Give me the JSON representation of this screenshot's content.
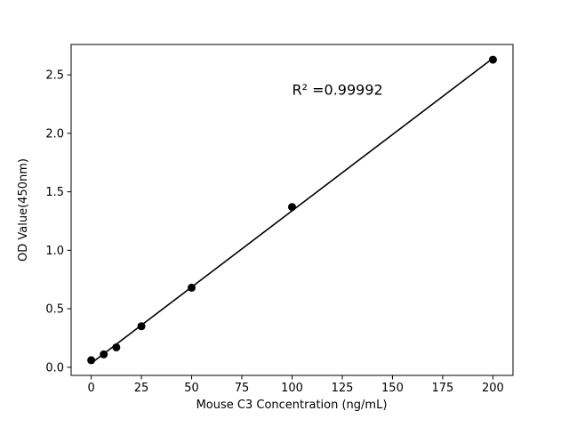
{
  "chart_data": {
    "type": "scatter",
    "title": "",
    "xlabel": "Mouse C3 Concentration (ng/mL)",
    "ylabel": "OD Value(450nm)",
    "x": [
      0,
      6.25,
      12.5,
      25,
      50,
      100,
      200
    ],
    "y": [
      0.06,
      0.11,
      0.17,
      0.35,
      0.68,
      1.37,
      2.63
    ],
    "fit_line": true,
    "annotation": {
      "text": "R² =0.99992",
      "x": 100,
      "y": 2.33
    },
    "xlim": [
      -10,
      210
    ],
    "ylim": [
      -0.07,
      2.76
    ],
    "xticks": [
      0,
      25,
      50,
      75,
      100,
      125,
      150,
      175,
      200
    ],
    "xtick_labels": [
      "0",
      "25",
      "50",
      "75",
      "100",
      "125",
      "150",
      "175",
      "200"
    ],
    "yticks": [
      0.0,
      0.5,
      1.0,
      1.5,
      2.0,
      2.5
    ],
    "ytick_labels": [
      "0.0",
      "0.5",
      "1.0",
      "1.5",
      "2.0",
      "2.5"
    ],
    "grid": false,
    "legend": null,
    "marker_color": "#000000",
    "line_color": "#000000",
    "frame_color": "#000000",
    "background": "#ffffff"
  }
}
